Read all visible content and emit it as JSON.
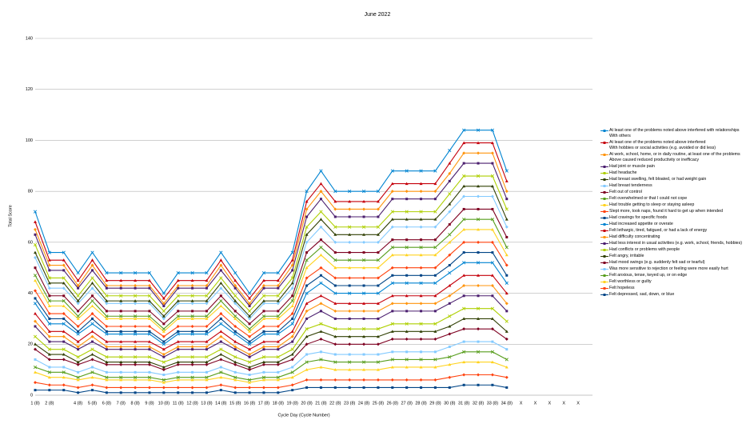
{
  "chart_data": {
    "type": "line",
    "stacked": true,
    "title": "June 2022",
    "x_label": "Cycle Day (Cycle Number)",
    "y_label": "Total Score",
    "categories": [
      "1 (8)",
      "2 (8)",
      null,
      "4 (8)",
      "5 (8)",
      "6 (8)",
      "7 (8)",
      "8 (8)",
      "9 (8)",
      "10 (8)",
      "11 (8)",
      "12 (8)",
      "13 (8)",
      "14 (8)",
      "15 (8)",
      "16 (8)",
      "17 (8)",
      "18 (8)",
      "19 (8)",
      "20 (8)",
      "21 (8)",
      "22 (8)",
      "23 (8)",
      "24 (8)",
      "25 (8)",
      "26 (8)",
      "27 (8)",
      "28 (8)",
      "29 (8)",
      "30 (8)",
      "31 (8)",
      "32 (8)",
      "33 (8)",
      "34 (8)",
      "X",
      "X",
      "X",
      "X",
      "X"
    ],
    "ylim": [
      0,
      140
    ],
    "yticks": [
      0,
      20,
      40,
      60,
      80,
      100,
      120,
      140
    ],
    "grid": true,
    "legend": "right",
    "series": [
      {
        "name": "Felt depressed, sad, down, or blue",
        "color": "#004586",
        "values": [
          2,
          2,
          2,
          1,
          2,
          1,
          1,
          1,
          1,
          1,
          1,
          1,
          1,
          2,
          1,
          1,
          1,
          1,
          2,
          3,
          3,
          3,
          3,
          3,
          3,
          3,
          3,
          3,
          3,
          3,
          4,
          4,
          4,
          3,
          null,
          null,
          null,
          null,
          null
        ]
      },
      {
        "name": "Felt hopeless",
        "color": "#ff420e",
        "values": [
          3,
          2,
          2,
          2,
          2,
          2,
          2,
          2,
          2,
          2,
          2,
          2,
          2,
          2,
          2,
          2,
          2,
          2,
          2,
          3,
          3,
          3,
          3,
          3,
          3,
          3,
          3,
          3,
          3,
          4,
          4,
          4,
          4,
          4,
          null,
          null,
          null,
          null,
          null
        ]
      },
      {
        "name": "Felt worthless or guilty",
        "color": "#ffd320",
        "values": [
          4,
          3,
          3,
          3,
          3,
          3,
          3,
          3,
          3,
          2,
          3,
          3,
          3,
          3,
          3,
          2,
          3,
          3,
          3,
          4,
          5,
          4,
          4,
          4,
          4,
          5,
          5,
          5,
          5,
          5,
          5,
          5,
          5,
          4,
          null,
          null,
          null,
          null,
          null
        ]
      },
      {
        "name": "Felt anxious, tense, keyed up, or on edge",
        "color": "#579d1c",
        "values": [
          2,
          2,
          2,
          1,
          2,
          1,
          1,
          1,
          1,
          1,
          1,
          1,
          1,
          2,
          1,
          1,
          1,
          1,
          2,
          3,
          3,
          3,
          3,
          3,
          3,
          3,
          3,
          3,
          3,
          3,
          4,
          4,
          4,
          3,
          null,
          null,
          null,
          null,
          null
        ]
      },
      {
        "name": "Was more sensitive to rejection or feeling were more easily hurt",
        "color": "#83caff",
        "values": [
          3,
          2,
          2,
          2,
          2,
          2,
          2,
          2,
          2,
          2,
          2,
          2,
          2,
          2,
          2,
          2,
          2,
          2,
          2,
          3,
          3,
          3,
          3,
          3,
          3,
          3,
          3,
          3,
          3,
          4,
          4,
          4,
          4,
          4,
          null,
          null,
          null,
          null,
          null
        ]
      },
      {
        "name": "Had mood swings (e.g. suddenly felt sad or tearful)",
        "color": "#7e0021",
        "values": [
          4,
          3,
          3,
          3,
          3,
          3,
          3,
          3,
          3,
          2,
          3,
          3,
          3,
          3,
          3,
          2,
          3,
          3,
          3,
          4,
          5,
          4,
          4,
          4,
          4,
          5,
          5,
          5,
          5,
          5,
          5,
          5,
          5,
          4,
          null,
          null,
          null,
          null,
          null
        ]
      },
      {
        "name": "Felt angry, irritable",
        "color": "#314004",
        "values": [
          2,
          2,
          2,
          1,
          2,
          1,
          1,
          1,
          1,
          1,
          1,
          1,
          1,
          2,
          1,
          1,
          1,
          1,
          2,
          3,
          3,
          3,
          3,
          3,
          3,
          3,
          3,
          3,
          3,
          3,
          4,
          4,
          4,
          3,
          null,
          null,
          null,
          null,
          null
        ]
      },
      {
        "name": "Had conflicts or problems with people",
        "color": "#aecf00",
        "values": [
          3,
          2,
          2,
          2,
          2,
          2,
          2,
          2,
          2,
          2,
          2,
          2,
          2,
          2,
          2,
          2,
          2,
          2,
          2,
          3,
          3,
          3,
          3,
          3,
          3,
          3,
          3,
          3,
          3,
          4,
          4,
          4,
          4,
          4,
          null,
          null,
          null,
          null,
          null
        ]
      },
      {
        "name": "Had less interest in usual activities (e.g. work, school, friends, hobbies)",
        "color": "#4b1f6f",
        "values": [
          4,
          3,
          3,
          3,
          3,
          3,
          3,
          3,
          3,
          2,
          3,
          3,
          3,
          3,
          3,
          2,
          3,
          3,
          3,
          4,
          5,
          4,
          4,
          4,
          4,
          5,
          5,
          5,
          5,
          5,
          5,
          5,
          5,
          4,
          null,
          null,
          null,
          null,
          null
        ]
      },
      {
        "name": "Had difficulty concentrating",
        "color": "#ff950e",
        "values": [
          2,
          2,
          2,
          1,
          2,
          1,
          1,
          1,
          1,
          1,
          1,
          1,
          1,
          2,
          1,
          1,
          1,
          1,
          2,
          3,
          3,
          3,
          3,
          3,
          3,
          3,
          3,
          3,
          3,
          3,
          4,
          4,
          4,
          3,
          null,
          null,
          null,
          null,
          null
        ]
      },
      {
        "name": "Felt lethargic, tired, fatigued, or had a lack of energy",
        "color": "#c5000b",
        "values": [
          3,
          2,
          2,
          2,
          2,
          2,
          2,
          2,
          2,
          2,
          2,
          2,
          2,
          2,
          2,
          2,
          2,
          2,
          2,
          3,
          3,
          3,
          3,
          3,
          3,
          3,
          3,
          3,
          3,
          4,
          4,
          4,
          4,
          4,
          null,
          null,
          null,
          null,
          null
        ]
      },
      {
        "name": "Had increased appetite or overate",
        "color": "#0084d1",
        "values": [
          4,
          3,
          3,
          3,
          3,
          3,
          3,
          3,
          3,
          2,
          3,
          3,
          3,
          3,
          3,
          2,
          3,
          3,
          3,
          4,
          5,
          4,
          4,
          4,
          4,
          5,
          5,
          5,
          5,
          5,
          5,
          5,
          5,
          4,
          null,
          null,
          null,
          null,
          null
        ]
      },
      {
        "name": "Had cravings for specific foods",
        "color": "#004586",
        "values": [
          2,
          2,
          2,
          1,
          2,
          1,
          1,
          1,
          1,
          1,
          1,
          1,
          1,
          2,
          1,
          1,
          1,
          1,
          2,
          3,
          3,
          3,
          3,
          3,
          3,
          3,
          3,
          3,
          3,
          3,
          4,
          4,
          4,
          3,
          null,
          null,
          null,
          null,
          null
        ]
      },
      {
        "name": "Slept more, took naps, found it hard to get up when intended",
        "color": "#ff420e",
        "values": [
          3,
          2,
          2,
          2,
          2,
          2,
          2,
          2,
          2,
          2,
          2,
          2,
          2,
          2,
          2,
          2,
          2,
          2,
          2,
          3,
          3,
          3,
          3,
          3,
          3,
          3,
          3,
          3,
          3,
          4,
          4,
          4,
          4,
          4,
          null,
          null,
          null,
          null,
          null
        ]
      },
      {
        "name": "Had trouble getting to sleep or staying asleep",
        "color": "#ffd320",
        "values": [
          4,
          3,
          3,
          3,
          3,
          3,
          3,
          3,
          3,
          2,
          3,
          3,
          3,
          3,
          3,
          2,
          3,
          3,
          3,
          4,
          5,
          4,
          4,
          4,
          4,
          5,
          5,
          5,
          5,
          5,
          5,
          5,
          5,
          4,
          null,
          null,
          null,
          null,
          null
        ]
      },
      {
        "name": "Felt overwhelmed or that I could not cope",
        "color": "#579d1c",
        "values": [
          2,
          2,
          2,
          1,
          2,
          1,
          1,
          1,
          1,
          1,
          1,
          1,
          1,
          2,
          1,
          1,
          1,
          1,
          2,
          3,
          3,
          3,
          3,
          3,
          3,
          3,
          3,
          3,
          3,
          3,
          4,
          4,
          4,
          3,
          null,
          null,
          null,
          null,
          null
        ]
      },
      {
        "name": "Felt out of control",
        "color": "#7e0021",
        "values": [
          3,
          2,
          2,
          2,
          2,
          2,
          2,
          2,
          2,
          2,
          2,
          2,
          2,
          2,
          2,
          2,
          2,
          2,
          2,
          3,
          3,
          3,
          3,
          3,
          3,
          3,
          3,
          3,
          3,
          4,
          4,
          4,
          4,
          4,
          null,
          null,
          null,
          null,
          null
        ]
      },
      {
        "name": "Had breast tenderness",
        "color": "#83caff",
        "values": [
          4,
          3,
          3,
          3,
          3,
          3,
          3,
          3,
          3,
          2,
          3,
          3,
          3,
          3,
          3,
          2,
          3,
          3,
          3,
          4,
          5,
          4,
          4,
          4,
          4,
          5,
          5,
          5,
          5,
          5,
          5,
          5,
          5,
          4,
          null,
          null,
          null,
          null,
          null
        ]
      },
      {
        "name": "Had breast swelling, felt bloated, or had weight gain",
        "color": "#314004",
        "values": [
          2,
          2,
          2,
          1,
          2,
          1,
          1,
          1,
          1,
          1,
          1,
          1,
          1,
          2,
          1,
          1,
          1,
          1,
          2,
          3,
          3,
          3,
          3,
          3,
          3,
          3,
          3,
          3,
          3,
          3,
          4,
          4,
          4,
          3,
          null,
          null,
          null,
          null,
          null
        ]
      },
      {
        "name": "Had headache",
        "color": "#aecf00",
        "values": [
          3,
          2,
          2,
          2,
          2,
          2,
          2,
          2,
          2,
          2,
          2,
          2,
          2,
          2,
          2,
          2,
          2,
          2,
          2,
          3,
          3,
          3,
          3,
          3,
          3,
          3,
          3,
          3,
          3,
          4,
          4,
          4,
          4,
          4,
          null,
          null,
          null,
          null,
          null
        ]
      },
      {
        "name": "Had joint or muscle pain",
        "color": "#4b1f6f",
        "values": [
          4,
          3,
          3,
          3,
          3,
          3,
          3,
          3,
          3,
          2,
          3,
          3,
          3,
          3,
          3,
          2,
          3,
          3,
          3,
          4,
          5,
          4,
          4,
          4,
          4,
          5,
          5,
          5,
          5,
          5,
          5,
          5,
          5,
          4,
          null,
          null,
          null,
          null,
          null
        ]
      },
      {
        "name": "At work, school, home, or in daily routine, at least one of the problems\nAbove caused reduced productivity or inefficacy",
        "color": "#ff950e",
        "values": [
          2,
          2,
          2,
          1,
          2,
          1,
          1,
          1,
          1,
          1,
          1,
          1,
          1,
          2,
          1,
          1,
          1,
          1,
          2,
          3,
          3,
          3,
          3,
          3,
          3,
          3,
          3,
          3,
          3,
          3,
          4,
          4,
          4,
          3,
          null,
          null,
          null,
          null,
          null
        ]
      },
      {
        "name": "At least one of the problems noted above interfered\nWith hobbies or social activities (e.g. avoided or did less)",
        "color": "#c5000b",
        "values": [
          3,
          2,
          2,
          2,
          2,
          2,
          2,
          2,
          2,
          2,
          2,
          2,
          2,
          2,
          2,
          2,
          2,
          2,
          2,
          3,
          3,
          3,
          3,
          3,
          3,
          3,
          3,
          3,
          3,
          4,
          4,
          4,
          4,
          4,
          null,
          null,
          null,
          null,
          null
        ]
      },
      {
        "name": "At least one of the problems noted above interfered with relationships\nWith others",
        "color": "#0084d1",
        "values": [
          4,
          3,
          3,
          3,
          3,
          3,
          3,
          3,
          3,
          2,
          3,
          3,
          3,
          3,
          3,
          2,
          3,
          3,
          3,
          4,
          5,
          4,
          4,
          4,
          4,
          5,
          5,
          5,
          5,
          5,
          5,
          5,
          5,
          4,
          null,
          null,
          null,
          null,
          null
        ]
      }
    ]
  }
}
